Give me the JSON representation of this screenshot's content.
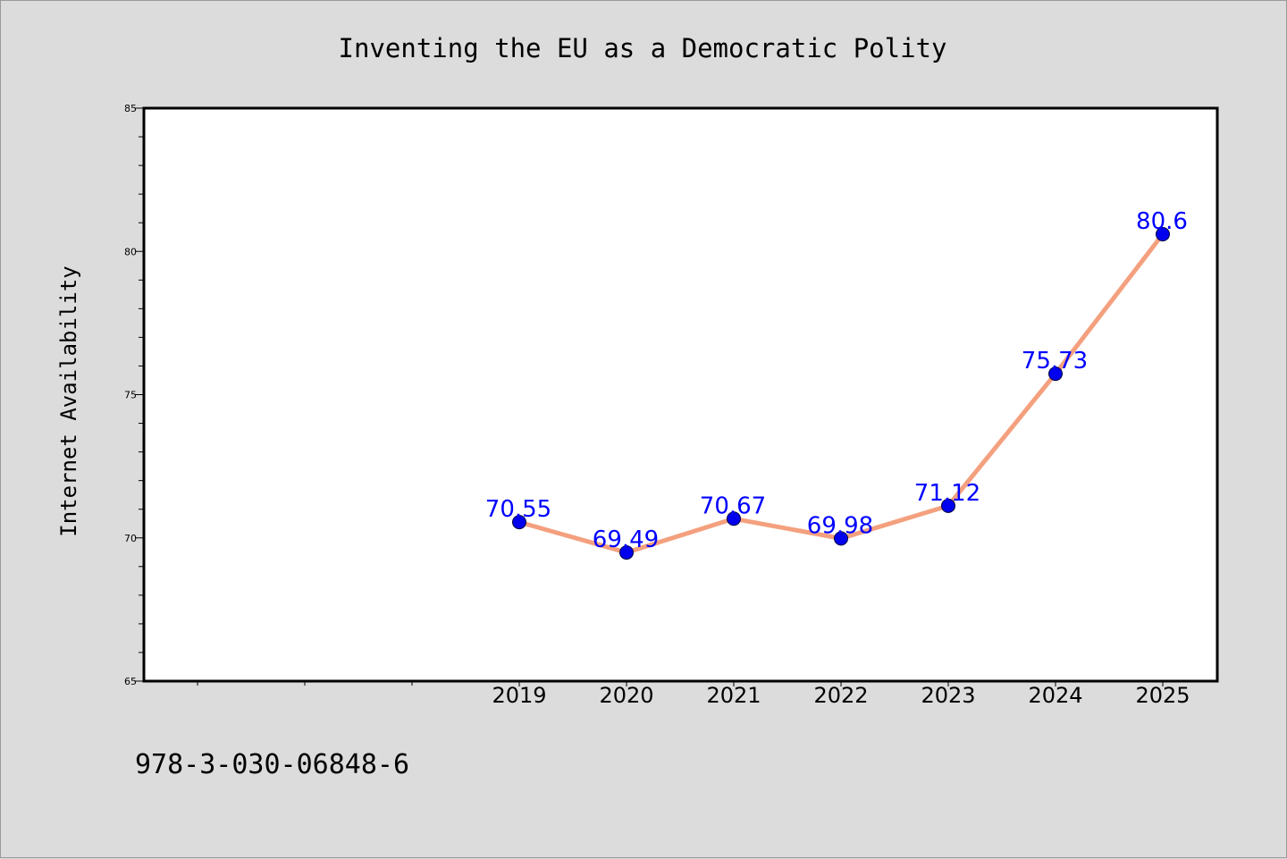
{
  "chart_data": {
    "type": "line",
    "title": "Inventing the EU as a Democratic Polity",
    "xlabel": "",
    "ylabel": "Internet Availability",
    "categories": [
      "2019",
      "2020",
      "2021",
      "2022",
      "2023",
      "2024",
      "2025"
    ],
    "series": [
      {
        "values": [
          70.55,
          69.49,
          70.67,
          69.98,
          71.12,
          75.73,
          80.6
        ],
        "data_labels": [
          "70.55",
          "69.49",
          "70.67",
          "69.98",
          "71.12",
          "75.73",
          "80.6"
        ]
      }
    ],
    "ylim": [
      65,
      85
    ],
    "yticks": [
      "65",
      "70",
      "75",
      "80",
      "85"
    ],
    "grid": false,
    "legend": "none",
    "line_color": "#f4a07e",
    "marker_color": "#0000ee",
    "label_color": "#0000ff",
    "annotation": "978-3-030-06848-6"
  }
}
